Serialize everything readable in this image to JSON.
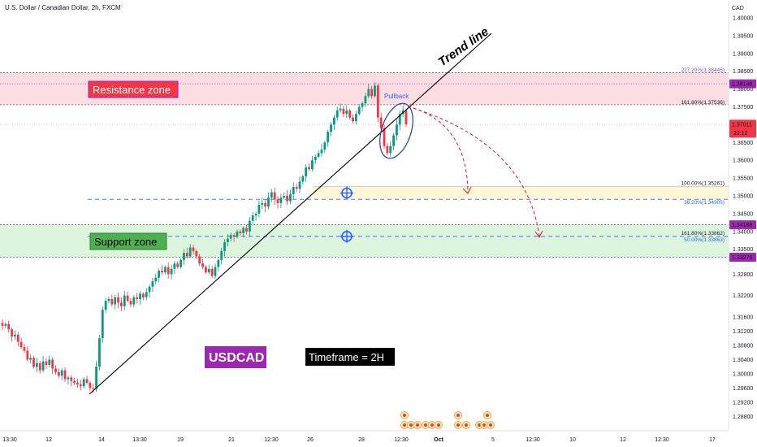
{
  "header": {
    "symbol_title": "U.S. Dollar / Canadian Dollar, 2h, FXCM",
    "currency": "CAD"
  },
  "colors": {
    "up": "#089981",
    "down": "#f23645",
    "resistance_fill": "#fcdde1",
    "support_fill": "#ddf5dd",
    "target_fill": "#fff8d6",
    "trend": "#000000",
    "dashed_blue": "#2962ff",
    "purple_label": "#9c27b0",
    "projection": "#d81b3a",
    "pullback_ellipse": "#1e3fb0"
  },
  "chart_data": {
    "type": "candlestick",
    "symbol": "USDCAD",
    "timeframe": "2h",
    "ylim": [
      1.286,
      1.404
    ],
    "y_ticks": [
      "1.40000",
      "1.39500",
      "1.39000",
      "1.38500",
      "1.38000",
      "1.37500",
      "1.37000",
      "1.36500",
      "1.36000",
      "1.35500",
      "1.35000",
      "1.34500",
      "1.34000",
      "1.33500",
      "1.32800",
      "1.32200",
      "1.31600",
      "1.31200",
      "1.30800",
      "1.30400",
      "1.30000",
      "1.29600",
      "1.29200",
      "1.28800"
    ],
    "x_ticks": [
      "13:30",
      "12",
      "14",
      "13:30",
      "19",
      "21",
      "12:30",
      "26",
      "28",
      "12:30",
      "Oct",
      "5",
      "12:30",
      "10",
      "12",
      "12:30",
      "17"
    ],
    "close_series": [
      1.3135,
      1.314,
      1.3125,
      1.3105,
      1.311,
      1.309,
      1.3075,
      1.3065,
      1.304,
      1.3045,
      1.302,
      1.303,
      1.301,
      1.3035,
      1.3025,
      1.304,
      1.3015,
      1.3005,
      1.2995,
      1.301,
      1.2985,
      1.299,
      1.298,
      1.2975,
      1.297,
      1.2965,
      1.2985,
      1.2975,
      1.296,
      1.2958,
      1.302,
      1.31,
      1.318,
      1.3205,
      1.321,
      1.3195,
      1.3215,
      1.32,
      1.319,
      1.322,
      1.3205,
      1.3195,
      1.3215,
      1.321,
      1.3225,
      1.3215,
      1.323,
      1.3245,
      1.326,
      1.327,
      1.329,
      1.3285,
      1.33,
      1.328,
      1.3295,
      1.331,
      1.33,
      1.332,
      1.334,
      1.333,
      1.3355,
      1.3345,
      1.333,
      1.331,
      1.33,
      1.3285,
      1.3295,
      1.3275,
      1.33,
      1.332,
      1.3345,
      1.337,
      1.338,
      1.339,
      1.3385,
      1.34,
      1.3395,
      1.341,
      1.34,
      1.343,
      1.3445,
      1.345,
      1.3475,
      1.348,
      1.347,
      1.3495,
      1.351,
      1.349,
      1.348,
      1.3495,
      1.35,
      1.3485,
      1.3505,
      1.3525,
      1.352,
      1.354,
      1.3555,
      1.358,
      1.3575,
      1.36,
      1.361,
      1.362,
      1.363,
      1.365,
      1.368,
      1.37,
      1.372,
      1.374,
      1.3745,
      1.373,
      1.374,
      1.372,
      1.371,
      1.373,
      1.375,
      1.376,
      1.378,
      1.38,
      1.378,
      1.381,
      1.372,
      1.369,
      1.364,
      1.362,
      1.364,
      1.367,
      1.37,
      1.373,
      1.374,
      1.3701
    ],
    "resistance_zone": [
      1.3756,
      1.3846
    ],
    "support_zone": [
      1.33276,
      1.34188
    ],
    "target_zone": [
      1.34905,
      1.35261
    ],
    "fib_levels": [
      {
        "label": "227.20%(1.38446)",
        "value": 1.38446,
        "color": "#7e57c2"
      },
      {
        "label": "161.80%(1.37536)",
        "value": 1.37536,
        "color": "#131722"
      },
      {
        "label": "100.00%(1.35261)",
        "value": 1.35261,
        "color": "#131722"
      },
      {
        "label": "38.20%(1.34905)",
        "value": 1.34905,
        "color": "#2962ff"
      },
      {
        "label": "161.80%(1.33862)",
        "value": 1.33862,
        "color": "#131722"
      },
      {
        "label": "50.00%(1.33863)",
        "value": 1.33863,
        "color": "#2962ff"
      }
    ],
    "price_tags": [
      {
        "label": "1.38148",
        "value": 1.38148,
        "color": "#9c27b0"
      },
      {
        "label": "1.37011",
        "sub": "22:12",
        "value": 1.37011,
        "color": "#f23645"
      },
      {
        "label": "1.34188",
        "value": 1.34188,
        "color": "#9c27b0"
      },
      {
        "label": "1.33276",
        "value": 1.33276,
        "color": "#9c27b0"
      }
    ]
  },
  "annotations": {
    "resistance": "Resistance zone",
    "support": "Support zone",
    "trend_line": "Trend line",
    "pullback": "Pullback",
    "symbol_box": "USDCAD",
    "timeframe_box": "Timeframe = 2H"
  }
}
